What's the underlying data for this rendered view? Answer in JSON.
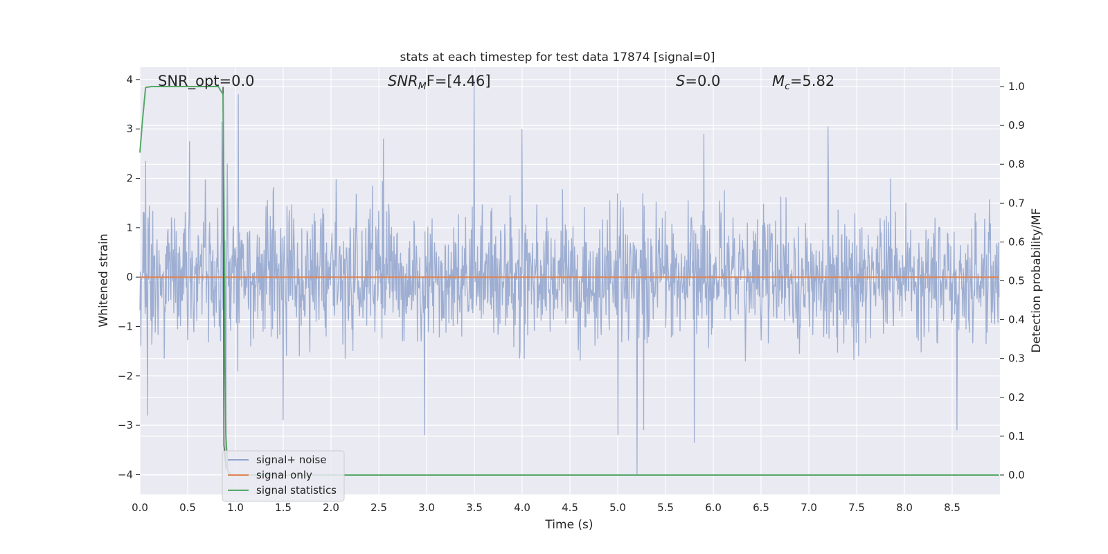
{
  "chart_data": {
    "type": "line",
    "title": "stats at each timestep for test data 17874 [signal=0]",
    "xlabel": "Time (s)",
    "ylabel_left": "Whitened strain",
    "ylabel_right": "Detection probability/MF",
    "xlim": [
      0.0,
      9.0
    ],
    "ylim_left": [
      -4.4,
      4.25
    ],
    "ylim_right": [
      -0.05,
      1.05
    ],
    "x_ticks": [
      "0.0",
      "0.5",
      "1.0",
      "1.5",
      "2.0",
      "2.5",
      "3.0",
      "3.5",
      "4.0",
      "4.5",
      "5.0",
      "5.5",
      "6.0",
      "6.5",
      "7.0",
      "7.5",
      "8.0",
      "8.5"
    ],
    "y_ticks_left": [
      "4",
      "3",
      "2",
      "1",
      "0",
      "−1",
      "−2",
      "−3",
      "−4"
    ],
    "y_ticks_right": [
      "1.0",
      "0.9",
      "0.8",
      "0.7",
      "0.6",
      "0.5",
      "0.4",
      "0.3",
      "0.2",
      "0.1",
      "0.0"
    ],
    "grid": true,
    "annotations": {
      "snr_opt": "SNR_opt=0.0",
      "snr_mf_prefix": "SNR",
      "snr_mf_sub": "M",
      "snr_mf_suffix": "F=[4.46]",
      "s_italic": "S",
      "s_value": "=0.0",
      "mc_italic": "M",
      "mc_sub": "c",
      "mc_value": "=5.82"
    },
    "legend": {
      "position": "lower-left",
      "entries": [
        "signal+ noise",
        "signal only",
        "signal statistics"
      ]
    },
    "series": [
      {
        "name": "signal+ noise",
        "axis": "left",
        "color": "#8fa3cc",
        "style": "noise",
        "t_range": [
          0.0,
          8.99
        ],
        "typical_abs": 1.5,
        "spikes": [
          {
            "x": 0.06,
            "y": 2.35
          },
          {
            "x": 0.08,
            "y": -2.8
          },
          {
            "x": 0.52,
            "y": 2.75
          },
          {
            "x": 0.86,
            "y": 3.15
          },
          {
            "x": 0.9,
            "y": -3.65
          },
          {
            "x": 1.03,
            "y": 3.7
          },
          {
            "x": 1.5,
            "y": -2.9
          },
          {
            "x": 2.55,
            "y": 2.8
          },
          {
            "x": 2.98,
            "y": -3.2
          },
          {
            "x": 3.5,
            "y": 4.0
          },
          {
            "x": 4.0,
            "y": 3.0
          },
          {
            "x": 5.0,
            "y": -3.2
          },
          {
            "x": 5.2,
            "y": -4.0
          },
          {
            "x": 5.27,
            "y": -3.1
          },
          {
            "x": 5.8,
            "y": -3.35
          },
          {
            "x": 5.9,
            "y": 2.9
          },
          {
            "x": 7.2,
            "y": 3.05
          },
          {
            "x": 8.55,
            "y": -3.1
          }
        ]
      },
      {
        "name": "signal only",
        "axis": "left",
        "color": "#dd8452",
        "x": [
          0.0,
          8.99
        ],
        "y": [
          0.0,
          0.0
        ]
      },
      {
        "name": "signal statistics",
        "axis": "right",
        "color": "#55a868",
        "x": [
          0.0,
          0.03,
          0.06,
          0.12,
          0.25,
          0.5,
          0.75,
          0.82,
          0.87,
          0.88,
          0.89,
          0.9,
          0.92,
          0.95,
          1.0,
          2.0,
          4.0,
          6.0,
          8.0,
          8.99
        ],
        "y": [
          0.83,
          0.92,
          0.998,
          1.0,
          1.0,
          1.0,
          1.0,
          1.0,
          0.98,
          0.7,
          0.3,
          0.1,
          0.01,
          0.0,
          0.0,
          0.0,
          0.0,
          0.0,
          0.0,
          0.0
        ]
      }
    ],
    "dark_line": {
      "color": "#555555",
      "x": [
        0.87,
        0.88,
        0.9,
        0.95
      ],
      "y_left": [
        3.85,
        -3.4,
        -3.85,
        -4.0
      ]
    }
  }
}
